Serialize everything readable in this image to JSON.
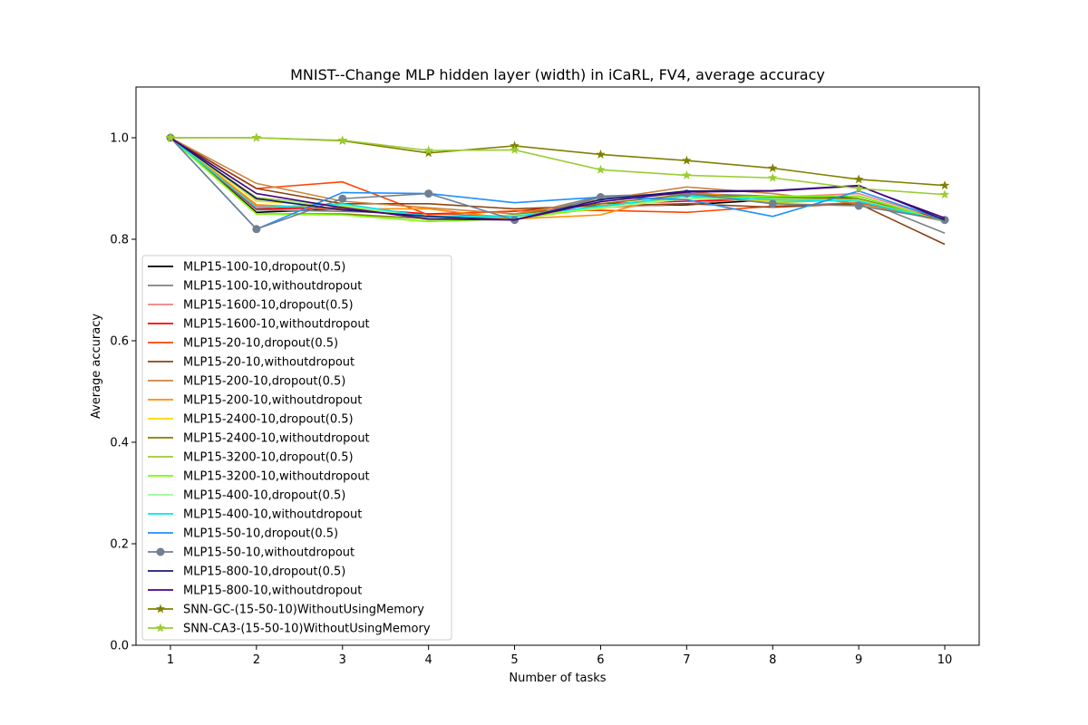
{
  "chart_data": {
    "type": "line",
    "title": "MNIST--Change MLP hidden layer (width) in iCaRL, FV4, average accuracy",
    "xlabel": "Number of tasks",
    "ylabel": "Average accuracy",
    "x": [
      1,
      2,
      3,
      4,
      5,
      6,
      7,
      8,
      9,
      10
    ],
    "xticks": [
      "1",
      "2",
      "3",
      "4",
      "5",
      "6",
      "7",
      "8",
      "9",
      "10"
    ],
    "xlim": [
      0.6,
      10.4
    ],
    "ylim": [
      0.0,
      1.1
    ],
    "yticks": [
      0.0,
      0.2,
      0.4,
      0.6,
      0.8,
      1.0
    ],
    "ytick_labels": [
      "0.0",
      "0.2",
      "0.4",
      "0.6",
      "0.8",
      "1.0"
    ],
    "grid": false,
    "legend_position": "lower-left",
    "series": [
      {
        "name": "MLP15-100-10,dropout(0.5)",
        "color": "#000000",
        "marker": "none",
        "values": [
          1.0,
          0.853,
          0.86,
          0.845,
          0.84,
          0.865,
          0.868,
          0.878,
          0.885,
          0.835
        ]
      },
      {
        "name": "MLP15-100-10,withoutdropout",
        "color": "#808080",
        "marker": "none",
        "values": [
          1.0,
          0.858,
          0.855,
          0.85,
          0.845,
          0.885,
          0.89,
          0.885,
          0.88,
          0.812
        ]
      },
      {
        "name": "MLP15-1600-10,dropout(0.5)",
        "color": "#f08080",
        "marker": "none",
        "values": [
          1.0,
          0.865,
          0.858,
          0.845,
          0.84,
          0.862,
          0.87,
          0.883,
          0.89,
          0.838
        ]
      },
      {
        "name": "MLP15-1600-10,withoutdropout",
        "color": "#ff0000",
        "marker": "none",
        "values": [
          1.0,
          0.86,
          0.862,
          0.85,
          0.855,
          0.87,
          0.875,
          0.88,
          0.876,
          0.84
        ]
      },
      {
        "name": "MLP15-20-10,dropout(0.5)",
        "color": "#ff4500",
        "marker": "none",
        "values": [
          1.0,
          0.9,
          0.913,
          0.848,
          0.856,
          0.857,
          0.853,
          0.865,
          0.872,
          0.835
        ]
      },
      {
        "name": "MLP15-20-10,withoutdropout",
        "color": "#8b4513",
        "marker": "none",
        "values": [
          1.0,
          0.9,
          0.87,
          0.87,
          0.86,
          0.866,
          0.87,
          0.863,
          0.87,
          0.79
        ]
      },
      {
        "name": "MLP15-200-10,dropout(0.5)",
        "color": "#cd853f",
        "marker": "none",
        "values": [
          1.0,
          0.91,
          0.875,
          0.862,
          0.85,
          0.878,
          0.903,
          0.89,
          0.87,
          0.838
        ]
      },
      {
        "name": "MLP15-200-10,withoutdropout",
        "color": "#ff8c00",
        "marker": "none",
        "values": [
          1.0,
          0.868,
          0.86,
          0.86,
          0.84,
          0.848,
          0.895,
          0.875,
          0.878,
          0.835
        ]
      },
      {
        "name": "MLP15-2400-10,dropout(0.5)",
        "color": "#ffd700",
        "marker": "none",
        "values": [
          1.0,
          0.875,
          0.865,
          0.84,
          0.845,
          0.86,
          0.885,
          0.875,
          0.88,
          0.835
        ]
      },
      {
        "name": "MLP15-2400-10,withoutdropout",
        "color": "#808000",
        "marker": "none",
        "values": [
          1.0,
          0.85,
          0.85,
          0.84,
          0.848,
          0.87,
          0.888,
          0.882,
          0.88,
          0.836
        ]
      },
      {
        "name": "MLP15-3200-10,dropout(0.5)",
        "color": "#9acd32",
        "marker": "none",
        "values": [
          1.0,
          0.882,
          0.865,
          0.838,
          0.845,
          0.865,
          0.885,
          0.872,
          0.878,
          0.835
        ]
      },
      {
        "name": "MLP15-3200-10,withoutdropout",
        "color": "#7cfc00",
        "marker": "none",
        "values": [
          1.0,
          0.85,
          0.848,
          0.835,
          0.84,
          0.862,
          0.88,
          0.885,
          0.885,
          0.835
        ]
      },
      {
        "name": "MLP15-400-10,dropout(0.5)",
        "color": "#98fb98",
        "marker": "none",
        "values": [
          1.0,
          0.878,
          0.868,
          0.842,
          0.847,
          0.862,
          0.88,
          0.88,
          0.876,
          0.836
        ]
      },
      {
        "name": "MLP15-400-10,withoutdropout",
        "color": "#00e5ee",
        "marker": "none",
        "values": [
          1.0,
          0.862,
          0.87,
          0.845,
          0.845,
          0.865,
          0.885,
          0.878,
          0.875,
          0.836
        ]
      },
      {
        "name": "MLP15-50-10,dropout(0.5)",
        "color": "#1e90ff",
        "marker": "none",
        "values": [
          1.0,
          0.82,
          0.892,
          0.89,
          0.872,
          0.883,
          0.878,
          0.845,
          0.895,
          0.838
        ]
      },
      {
        "name": "MLP15-50-10,withoutdropout",
        "color": "#708090",
        "marker": "circle",
        "values": [
          1.0,
          0.82,
          0.88,
          0.89,
          0.838,
          0.883,
          0.89,
          0.87,
          0.866,
          0.838
        ]
      },
      {
        "name": "MLP15-800-10,dropout(0.5)",
        "color": "#191970",
        "marker": "none",
        "values": [
          1.0,
          0.88,
          0.858,
          0.845,
          0.838,
          0.878,
          0.895,
          0.896,
          0.906,
          0.838
        ]
      },
      {
        "name": "MLP15-800-10,withoutdropout",
        "color": "#4b0082",
        "marker": "none",
        "values": [
          1.0,
          0.89,
          0.862,
          0.84,
          0.838,
          0.874,
          0.893,
          0.895,
          0.905,
          0.842
        ]
      },
      {
        "name": "SNN-GC-(15-50-10)WithoutUsingMemory",
        "color": "#808000",
        "marker": "star",
        "values": [
          1.0,
          1.0,
          0.994,
          0.97,
          0.984,
          0.967,
          0.955,
          0.94,
          0.918,
          0.906
        ]
      },
      {
        "name": "SNN-CA3-(15-50-10)WithoutUsingMemory",
        "color": "#9acd32",
        "marker": "star",
        "values": [
          1.0,
          1.0,
          0.995,
          0.975,
          0.976,
          0.937,
          0.926,
          0.921,
          0.9,
          0.888
        ]
      }
    ]
  }
}
